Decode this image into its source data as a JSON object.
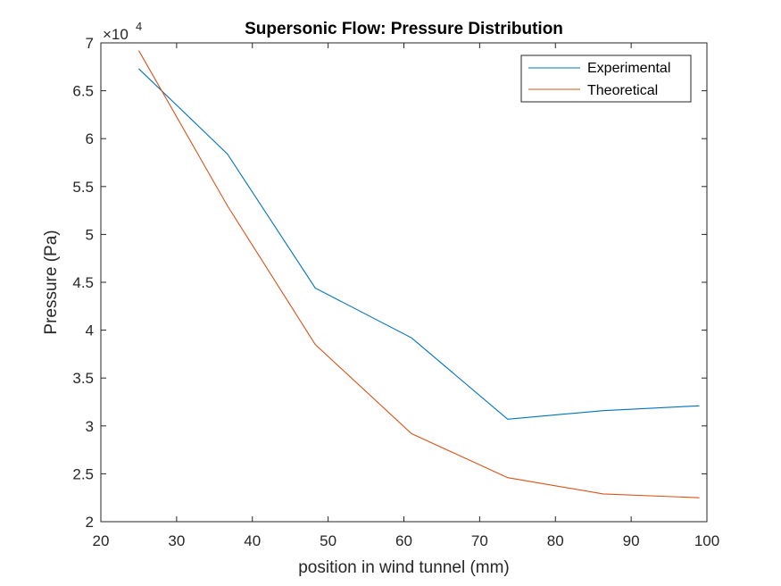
{
  "chart_data": {
    "type": "line",
    "title": "Supersonic Flow: Pressure Distribution",
    "xlabel": "position in wind tunnel (mm)",
    "ylabel": "Pressure (Pa)",
    "y_exponent_base": "×10",
    "y_exponent_power": "4",
    "xlim": [
      20,
      100
    ],
    "ylim": [
      2,
      7
    ],
    "y_scale_multiplier": 10000,
    "xticks": [
      20,
      30,
      40,
      50,
      60,
      70,
      80,
      90,
      100
    ],
    "xtick_labels": [
      "20",
      "30",
      "40",
      "50",
      "60",
      "70",
      "80",
      "90",
      "100"
    ],
    "yticks": [
      2,
      2.5,
      3,
      3.5,
      4,
      4.5,
      5,
      5.5,
      6,
      6.5,
      7
    ],
    "ytick_labels": [
      "2",
      "2.5",
      "3",
      "3.5",
      "4",
      "4.5",
      "5",
      "5.5",
      "6",
      "6.5",
      "7"
    ],
    "grid": false,
    "legend_position": "top-right",
    "series": [
      {
        "name": "Experimental",
        "color": "#0072BD",
        "x": [
          25,
          36.7,
          48.3,
          61,
          73.7,
          86.3,
          99
        ],
        "y": [
          6.73,
          5.84,
          4.44,
          3.92,
          3.07,
          3.16,
          3.21
        ]
      },
      {
        "name": "Theoretical",
        "color": "#D95319",
        "x": [
          25,
          36.7,
          48.3,
          61,
          73.7,
          86.3,
          99
        ],
        "y": [
          6.92,
          5.3,
          3.85,
          2.92,
          2.46,
          2.29,
          2.25
        ]
      }
    ]
  }
}
